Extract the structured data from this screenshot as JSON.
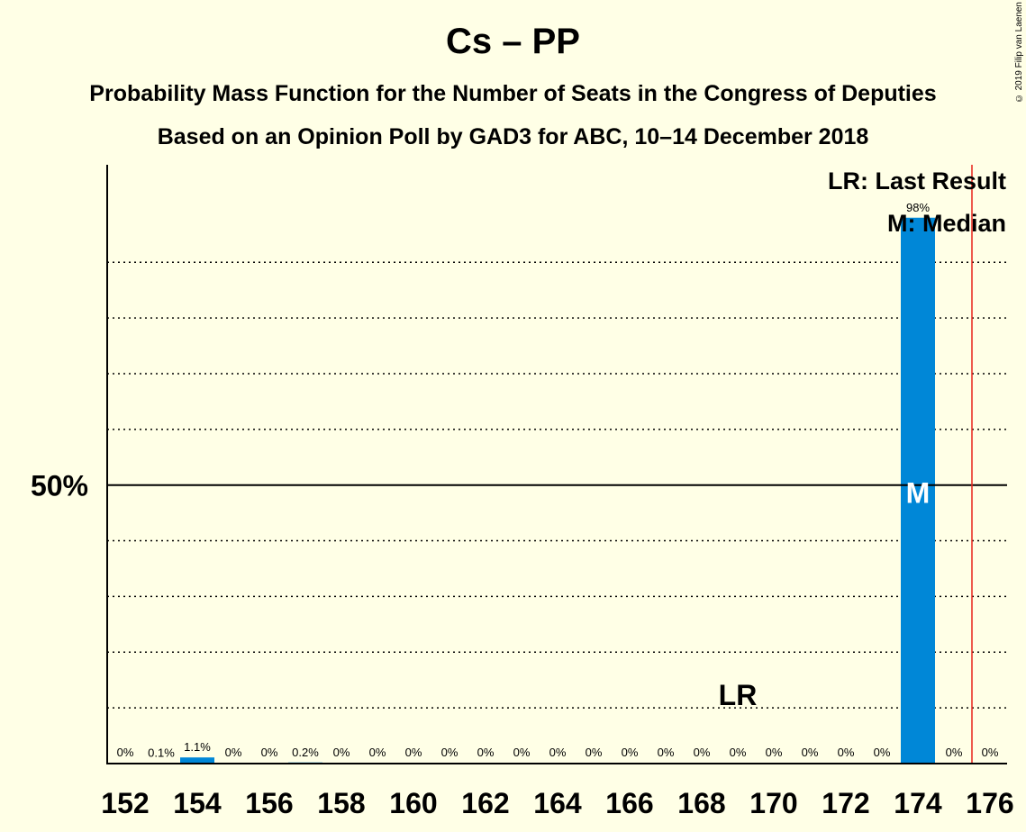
{
  "header": {
    "title": "Cs – PP",
    "subtitle1": "Probability Mass Function for the Number of Seats in the Congress of Deputies",
    "subtitle2": "Based on an Opinion Poll by GAD3 for ABC, 10–14 December 2018",
    "copyright": "© 2019 Filip van Laenen"
  },
  "colors": {
    "background": "#ffffe6",
    "bar": "#0087d7",
    "last_result_line": "#e8251c",
    "axis": "#000000"
  },
  "chart_data": {
    "type": "bar",
    "x": [
      152,
      153,
      154,
      155,
      156,
      157,
      158,
      159,
      160,
      161,
      162,
      163,
      164,
      165,
      166,
      167,
      168,
      169,
      170,
      171,
      172,
      173,
      174,
      175,
      176
    ],
    "values": [
      0,
      0.1,
      1.1,
      0,
      0,
      0.2,
      0,
      0,
      0,
      0,
      0,
      0,
      0,
      0,
      0,
      0,
      0,
      0,
      0,
      0,
      0,
      0,
      98,
      0,
      0
    ],
    "bar_labels": [
      "0%",
      "0.1%",
      "1.1%",
      "0%",
      "0%",
      "0.2%",
      "0%",
      "0%",
      "0%",
      "0%",
      "0%",
      "0%",
      "0%",
      "0%",
      "0%",
      "0%",
      "0%",
      "0%",
      "0%",
      "0%",
      "0%",
      "0%",
      "98%",
      "0%",
      "0%"
    ],
    "x_tick_labels": [
      "152",
      "154",
      "156",
      "158",
      "160",
      "162",
      "164",
      "166",
      "168",
      "170",
      "172",
      "174",
      "176"
    ],
    "ylim": [
      0,
      107.5
    ],
    "y_gridlines": [
      10,
      20,
      30,
      40,
      60,
      70,
      80,
      90
    ],
    "y_major": 50,
    "y_major_label": "50%",
    "last_result": 169,
    "last_result_marker": "LR",
    "median": 174,
    "median_marker": "M",
    "majority_line": 175.5,
    "legend": [
      "LR: Last Result",
      "M: Median"
    ],
    "legend_position": "top-right"
  }
}
